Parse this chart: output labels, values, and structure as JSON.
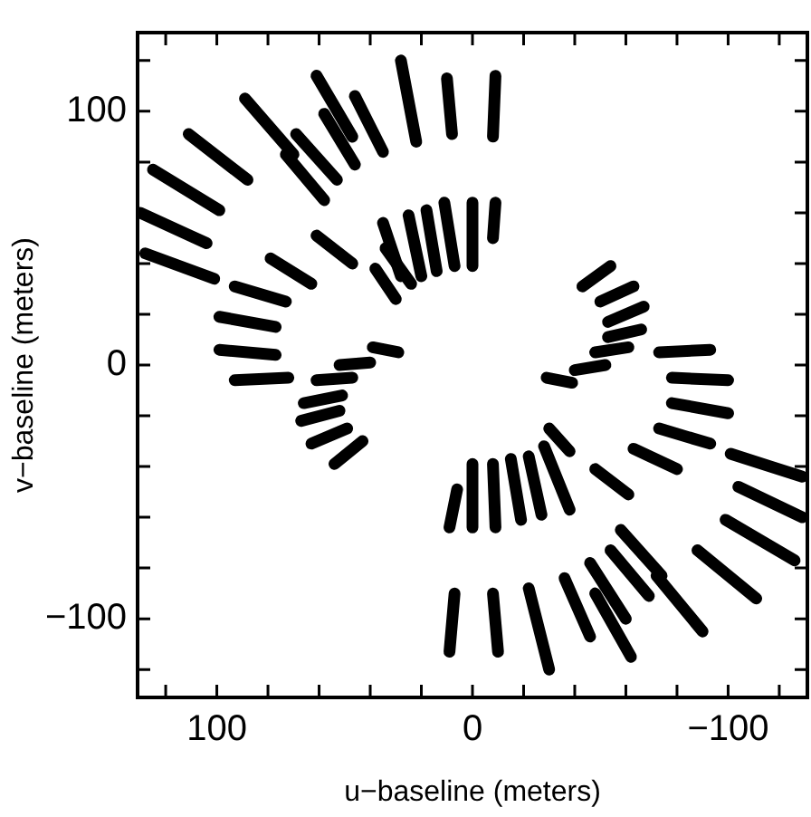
{
  "chart_data": {
    "type": "line",
    "xlabel": "u−baseline (meters)",
    "ylabel": "v−baseline (meters)",
    "xlim": [
      131,
      -131
    ],
    "ylim": [
      -131,
      131
    ],
    "xticks": [
      {
        "value": 120,
        "label": null
      },
      {
        "value": 100,
        "label": "100"
      },
      {
        "value": 80,
        "label": null
      },
      {
        "value": 60,
        "label": null
      },
      {
        "value": 40,
        "label": null
      },
      {
        "value": 20,
        "label": null
      },
      {
        "value": 0,
        "label": "0"
      },
      {
        "value": -20,
        "label": null
      },
      {
        "value": -40,
        "label": null
      },
      {
        "value": -60,
        "label": null
      },
      {
        "value": -80,
        "label": null
      },
      {
        "value": -100,
        "label": "−100"
      },
      {
        "value": -120,
        "label": null
      }
    ],
    "yticks": [
      {
        "value": -120,
        "label": null
      },
      {
        "value": -100,
        "label": "−100"
      },
      {
        "value": -80,
        "label": null
      },
      {
        "value": -60,
        "label": null
      },
      {
        "value": -40,
        "label": null
      },
      {
        "value": -20,
        "label": null
      },
      {
        "value": 0,
        "label": "0"
      },
      {
        "value": 20,
        "label": null
      },
      {
        "value": 40,
        "label": null
      },
      {
        "value": 60,
        "label": null
      },
      {
        "value": 80,
        "label": null
      },
      {
        "value": 100,
        "label": "100"
      },
      {
        "value": 120,
        "label": null
      }
    ],
    "grid": false,
    "legend": false,
    "marker": "none",
    "line_style": "solid",
    "series": [
      {
        "color": "#000000",
        "x": [
          28,
          22
        ],
        "values": [
          120,
          88
        ]
      },
      {
        "color": "#000000",
        "x": [
          10,
          8
        ],
        "values": [
          113,
          91
        ]
      },
      {
        "color": "#000000",
        "x": [
          61,
          47
        ],
        "values": [
          114,
          90
        ]
      },
      {
        "color": "#000000",
        "x": [
          46,
          35
        ],
        "values": [
          106,
          84
        ]
      },
      {
        "color": "#000000",
        "x": [
          58,
          46
        ],
        "values": [
          99,
          79
        ]
      },
      {
        "color": "#000000",
        "x": [
          89,
          70
        ],
        "values": [
          105,
          83
        ]
      },
      {
        "color": "#000000",
        "x": [
          69,
          53
        ],
        "values": [
          91,
          73
        ]
      },
      {
        "color": "#000000",
        "x": [
          73,
          58
        ],
        "values": [
          83,
          65
        ]
      },
      {
        "color": "#000000",
        "x": [
          111,
          88
        ],
        "values": [
          91,
          73
        ]
      },
      {
        "color": "#000000",
        "x": [
          125,
          99
        ],
        "values": [
          77,
          61
        ]
      },
      {
        "color": "#000000",
        "x": [
          130,
          104
        ],
        "values": [
          60,
          48
        ]
      },
      {
        "color": "#000000",
        "x": [
          128,
          101
        ],
        "values": [
          44,
          34
        ]
      },
      {
        "color": "#000000",
        "x": [
          61,
          47
        ],
        "values": [
          51,
          40
        ]
      },
      {
        "color": "#000000",
        "x": [
          79,
          63
        ],
        "values": [
          42,
          32
        ]
      },
      {
        "color": "#000000",
        "x": [
          93,
          73
        ],
        "values": [
          31,
          25
        ]
      },
      {
        "color": "#000000",
        "x": [
          99,
          77
        ],
        "values": [
          19,
          15
        ]
      },
      {
        "color": "#000000",
        "x": [
          99,
          77
        ],
        "values": [
          6,
          4
        ]
      },
      {
        "color": "#000000",
        "x": [
          39,
          29
        ],
        "values": [
          7,
          5
        ]
      },
      {
        "color": "#000000",
        "x": [
          93,
          72
        ],
        "values": [
          -6,
          -5
        ]
      },
      {
        "color": "#000000",
        "x": [
          61,
          47
        ],
        "values": [
          -6,
          -5
        ]
      },
      {
        "color": "#000000",
        "x": [
          52,
          40
        ],
        "values": [
          0,
          1
        ]
      },
      {
        "color": "#000000",
        "x": [
          0,
          0
        ],
        "values": [
          64,
          39
        ]
      },
      {
        "color": "#000000",
        "x": [
          11,
          7
        ],
        "values": [
          64,
          39
        ]
      },
      {
        "color": "#000000",
        "x": [
          18,
          14
        ],
        "values": [
          61,
          37
        ]
      },
      {
        "color": "#000000",
        "x": [
          25,
          20
        ],
        "values": [
          59,
          35
        ]
      },
      {
        "color": "#000000",
        "x": [
          35,
          28
        ],
        "values": [
          56,
          35
        ]
      },
      {
        "color": "#000000",
        "x": [
          38,
          30
        ],
        "values": [
          38,
          26
        ]
      },
      {
        "color": "#000000",
        "x": [
          34,
          24
        ],
        "values": [
          46,
          32
        ]
      },
      {
        "color": "#000000",
        "x": [
          -9,
          -8
        ],
        "values": [
          114,
          90
        ]
      },
      {
        "color": "#000000",
        "x": [
          -9,
          -8
        ],
        "values": [
          64,
          50
        ]
      },
      {
        "color": "#000000",
        "x": [
          -54,
          -43
        ],
        "values": [
          39,
          31
        ]
      },
      {
        "color": "#000000",
        "x": [
          -63,
          -50
        ],
        "values": [
          31,
          25
        ]
      },
      {
        "color": "#000000",
        "x": [
          -67,
          -53
        ],
        "values": [
          23,
          17
        ]
      },
      {
        "color": "#000000",
        "x": [
          -66,
          -53
        ],
        "values": [
          14,
          11
        ]
      },
      {
        "color": "#000000",
        "x": [
          -61,
          -48
        ],
        "values": [
          7,
          5
        ]
      },
      {
        "color": "#000000",
        "x": [
          -52,
          -40
        ],
        "values": [
          0,
          -2
        ]
      },
      {
        "color": "#000000",
        "x": [
          -93,
          -73
        ],
        "values": [
          6,
          5
        ]
      },
      {
        "color": "#000000",
        "x": [
          -100,
          -78
        ],
        "values": [
          -6,
          -5
        ]
      },
      {
        "color": "#000000",
        "x": [
          -29,
          -39
        ],
        "values": [
          -5,
          -7
        ]
      },
      {
        "color": "#000000",
        "x": [
          -78,
          -100
        ],
        "values": [
          -15,
          -19
        ]
      },
      {
        "color": "#000000",
        "x": [
          -73,
          -93
        ],
        "values": [
          -25,
          -31
        ]
      },
      {
        "color": "#000000",
        "x": [
          -63,
          -80
        ],
        "values": [
          -33,
          -41
        ]
      },
      {
        "color": "#000000",
        "x": [
          -48,
          -61
        ],
        "values": [
          -41,
          -51
        ]
      },
      {
        "color": "#000000",
        "x": [
          -101,
          -129
        ],
        "values": [
          -35,
          -44
        ]
      },
      {
        "color": "#000000",
        "x": [
          -104,
          -129
        ],
        "values": [
          -48,
          -60
        ]
      },
      {
        "color": "#000000",
        "x": [
          -99,
          -126
        ],
        "values": [
          -61,
          -77
        ]
      },
      {
        "color": "#000000",
        "x": [
          -88,
          -111
        ],
        "values": [
          -73,
          -92
        ]
      },
      {
        "color": "#000000",
        "x": [
          -58,
          -74
        ],
        "values": [
          -65,
          -83
        ]
      },
      {
        "color": "#000000",
        "x": [
          -72,
          -90
        ],
        "values": [
          -83,
          -105
        ]
      },
      {
        "color": "#000000",
        "x": [
          -54,
          -69
        ],
        "values": [
          -73,
          -91
        ]
      },
      {
        "color": "#000000",
        "x": [
          -46,
          -60
        ],
        "values": [
          -78,
          -100
        ]
      },
      {
        "color": "#000000",
        "x": [
          -48,
          -62
        ],
        "values": [
          -90,
          -115
        ]
      },
      {
        "color": "#000000",
        "x": [
          -36,
          -46
        ],
        "values": [
          -84,
          -107
        ]
      },
      {
        "color": "#000000",
        "x": [
          -22,
          -30
        ],
        "values": [
          -88,
          -120
        ]
      },
      {
        "color": "#000000",
        "x": [
          -8,
          -10
        ],
        "values": [
          -90,
          -113
        ]
      },
      {
        "color": "#000000",
        "x": [
          0,
          0
        ],
        "values": [
          -39,
          -64
        ]
      },
      {
        "color": "#000000",
        "x": [
          -8,
          -9
        ],
        "values": [
          -39,
          -64
        ]
      },
      {
        "color": "#000000",
        "x": [
          -15,
          -19
        ],
        "values": [
          -37,
          -61
        ]
      },
      {
        "color": "#000000",
        "x": [
          -22,
          -27
        ],
        "values": [
          -36,
          -59
        ]
      },
      {
        "color": "#000000",
        "x": [
          -30,
          -38
        ],
        "values": [
          -25,
          -34
        ]
      },
      {
        "color": "#000000",
        "x": [
          -28,
          -38
        ],
        "values": [
          -32,
          -57
        ]
      },
      {
        "color": "#000000",
        "x": [
          66,
          51
        ],
        "values": [
          -15,
          -12
        ]
      },
      {
        "color": "#000000",
        "x": [
          67,
          52
        ],
        "values": [
          -22,
          -18
        ]
      },
      {
        "color": "#000000",
        "x": [
          63,
          49
        ],
        "values": [
          -31,
          -25
        ]
      },
      {
        "color": "#000000",
        "x": [
          54,
          43
        ],
        "values": [
          -39,
          -30
        ]
      },
      {
        "color": "#000000",
        "x": [
          6,
          9
        ],
        "values": [
          -49,
          -64
        ]
      },
      {
        "color": "#000000",
        "x": [
          7,
          9
        ],
        "values": [
          -90,
          -113
        ]
      }
    ]
  }
}
